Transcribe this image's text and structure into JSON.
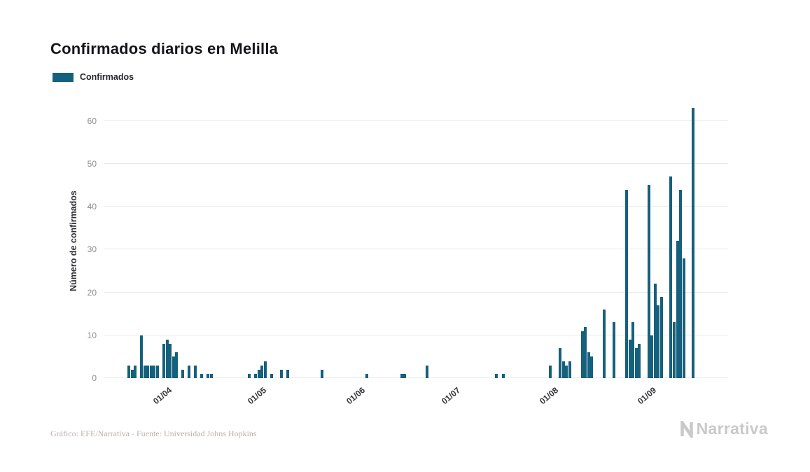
{
  "title": "Confirmados diarios en Melilla",
  "legend": {
    "label": "Confirmados"
  },
  "footer": {
    "credit": "Gráfico: EFE/Narrativa - Fuente: Universidad Johns Hopkins",
    "brand": "Narrativa"
  },
  "chart_data": {
    "type": "bar",
    "title": "Confirmados diarios en Melilla",
    "xlabel": "",
    "ylabel": "Número de confirmados",
    "ylim": [
      0,
      64
    ],
    "yticks": [
      0,
      10,
      20,
      30,
      40,
      50,
      60
    ],
    "grid": true,
    "legend_position": "top-left",
    "bar_color": "#15607d",
    "grid_color": "#e9e9e9",
    "x_start": "2020-03-12",
    "x_end": "2020-09-25",
    "xticks": [
      {
        "label": "01/04",
        "date": "2020-04-01"
      },
      {
        "label": "01/05",
        "date": "2020-05-01"
      },
      {
        "label": "01/06",
        "date": "2020-06-01"
      },
      {
        "label": "01/07",
        "date": "2020-07-01"
      },
      {
        "label": "01/08",
        "date": "2020-08-01"
      },
      {
        "label": "01/09",
        "date": "2020-09-01"
      }
    ],
    "series": [
      {
        "name": "Confirmados",
        "points": [
          {
            "date": "2020-03-20",
            "value": 3
          },
          {
            "date": "2020-03-21",
            "value": 2
          },
          {
            "date": "2020-03-22",
            "value": 3
          },
          {
            "date": "2020-03-24",
            "value": 10
          },
          {
            "date": "2020-03-25",
            "value": 3
          },
          {
            "date": "2020-03-26",
            "value": 3
          },
          {
            "date": "2020-03-27",
            "value": 3
          },
          {
            "date": "2020-03-28",
            "value": 3
          },
          {
            "date": "2020-03-29",
            "value": 3
          },
          {
            "date": "2020-03-31",
            "value": 8
          },
          {
            "date": "2020-04-01",
            "value": 9
          },
          {
            "date": "2020-04-02",
            "value": 8
          },
          {
            "date": "2020-04-03",
            "value": 5
          },
          {
            "date": "2020-04-04",
            "value": 6
          },
          {
            "date": "2020-04-06",
            "value": 2
          },
          {
            "date": "2020-04-08",
            "value": 3
          },
          {
            "date": "2020-04-10",
            "value": 3
          },
          {
            "date": "2020-04-12",
            "value": 1
          },
          {
            "date": "2020-04-14",
            "value": 1
          },
          {
            "date": "2020-04-15",
            "value": 1
          },
          {
            "date": "2020-04-27",
            "value": 1
          },
          {
            "date": "2020-04-29",
            "value": 1
          },
          {
            "date": "2020-04-30",
            "value": 2
          },
          {
            "date": "2020-05-01",
            "value": 3
          },
          {
            "date": "2020-05-02",
            "value": 4
          },
          {
            "date": "2020-05-04",
            "value": 1
          },
          {
            "date": "2020-05-07",
            "value": 2
          },
          {
            "date": "2020-05-09",
            "value": 2
          },
          {
            "date": "2020-05-20",
            "value": 2
          },
          {
            "date": "2020-06-03",
            "value": 1
          },
          {
            "date": "2020-06-14",
            "value": 1
          },
          {
            "date": "2020-06-15",
            "value": 1
          },
          {
            "date": "2020-06-22",
            "value": 3
          },
          {
            "date": "2020-07-14",
            "value": 1
          },
          {
            "date": "2020-07-16",
            "value": 1
          },
          {
            "date": "2020-07-31",
            "value": 3
          },
          {
            "date": "2020-08-03",
            "value": 7
          },
          {
            "date": "2020-08-04",
            "value": 4
          },
          {
            "date": "2020-08-05",
            "value": 3
          },
          {
            "date": "2020-08-06",
            "value": 4
          },
          {
            "date": "2020-08-10",
            "value": 11
          },
          {
            "date": "2020-08-11",
            "value": 12
          },
          {
            "date": "2020-08-12",
            "value": 6
          },
          {
            "date": "2020-08-13",
            "value": 5
          },
          {
            "date": "2020-08-17",
            "value": 16
          },
          {
            "date": "2020-08-20",
            "value": 13
          },
          {
            "date": "2020-08-24",
            "value": 44
          },
          {
            "date": "2020-08-25",
            "value": 9
          },
          {
            "date": "2020-08-26",
            "value": 13
          },
          {
            "date": "2020-08-27",
            "value": 7
          },
          {
            "date": "2020-08-28",
            "value": 8
          },
          {
            "date": "2020-08-31",
            "value": 45
          },
          {
            "date": "2020-09-01",
            "value": 10
          },
          {
            "date": "2020-09-02",
            "value": 22
          },
          {
            "date": "2020-09-03",
            "value": 17
          },
          {
            "date": "2020-09-04",
            "value": 19
          },
          {
            "date": "2020-09-07",
            "value": 47
          },
          {
            "date": "2020-09-08",
            "value": 13
          },
          {
            "date": "2020-09-09",
            "value": 32
          },
          {
            "date": "2020-09-10",
            "value": 44
          },
          {
            "date": "2020-09-11",
            "value": 28
          },
          {
            "date": "2020-09-14",
            "value": 63
          }
        ]
      }
    ]
  }
}
